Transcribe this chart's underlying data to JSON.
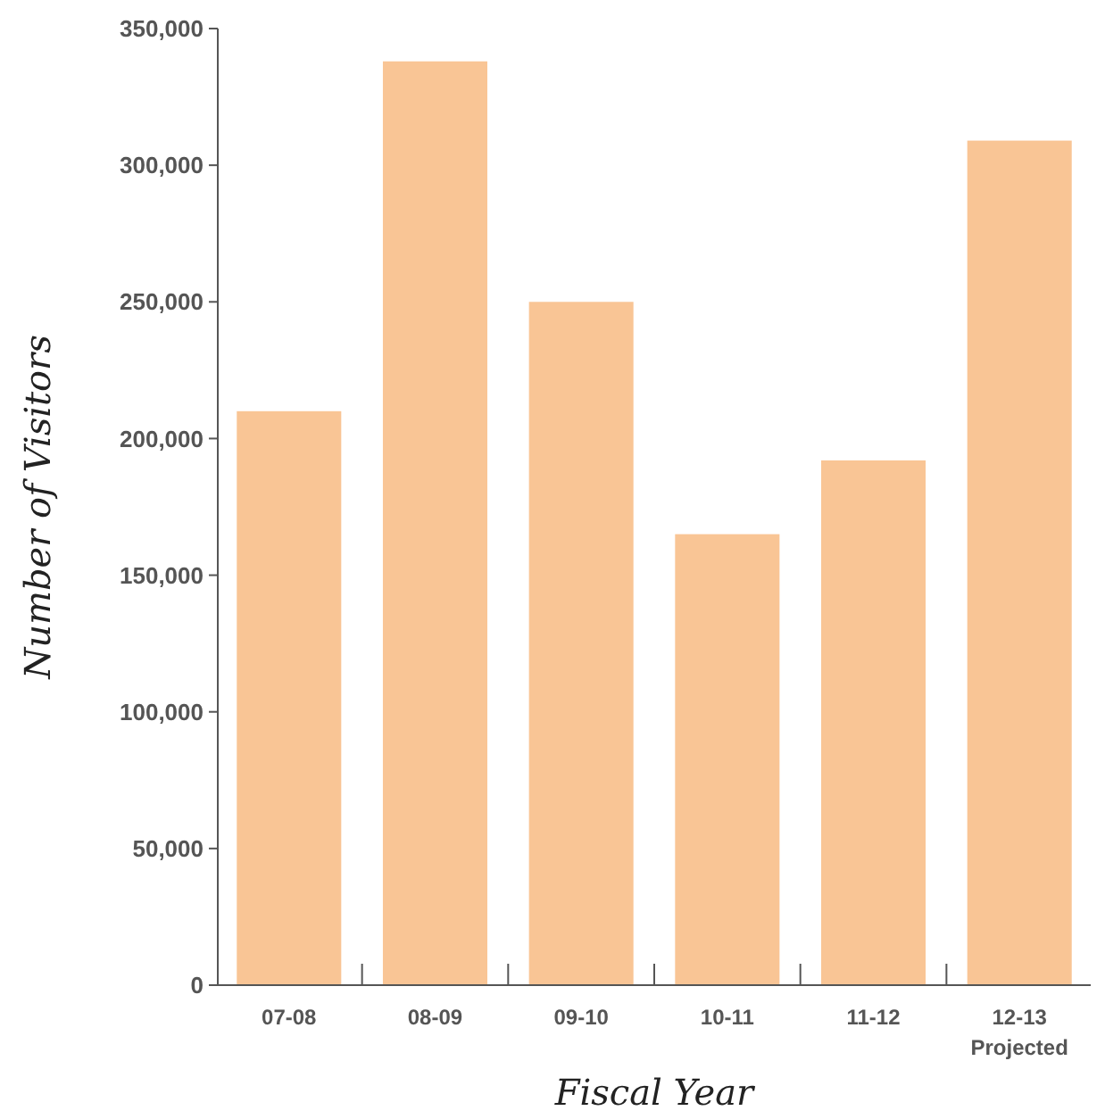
{
  "chart_data": {
    "type": "bar",
    "xlabel": "Fiscal Year",
    "ylabel": "Number of Visitors",
    "categories": [
      "07-08",
      "08-09",
      "09-10",
      "10-11",
      "11-12",
      "12-13\nProjected"
    ],
    "values": [
      210000,
      338000,
      250000,
      165000,
      192000,
      309000
    ],
    "color": "#f9c595",
    "ylim": [
      0,
      350000
    ],
    "yticks": [
      {
        "value": 0,
        "label": "0"
      },
      {
        "value": 50000,
        "label": "50,000"
      },
      {
        "value": 100000,
        "label": "100,000"
      },
      {
        "value": 150000,
        "label": "150,000"
      },
      {
        "value": 200000,
        "label": "200,000"
      },
      {
        "value": 250000,
        "label": "250,000"
      },
      {
        "value": 300000,
        "label": "300,000"
      },
      {
        "value": 350000,
        "label": "350,000"
      }
    ],
    "grid": false
  }
}
